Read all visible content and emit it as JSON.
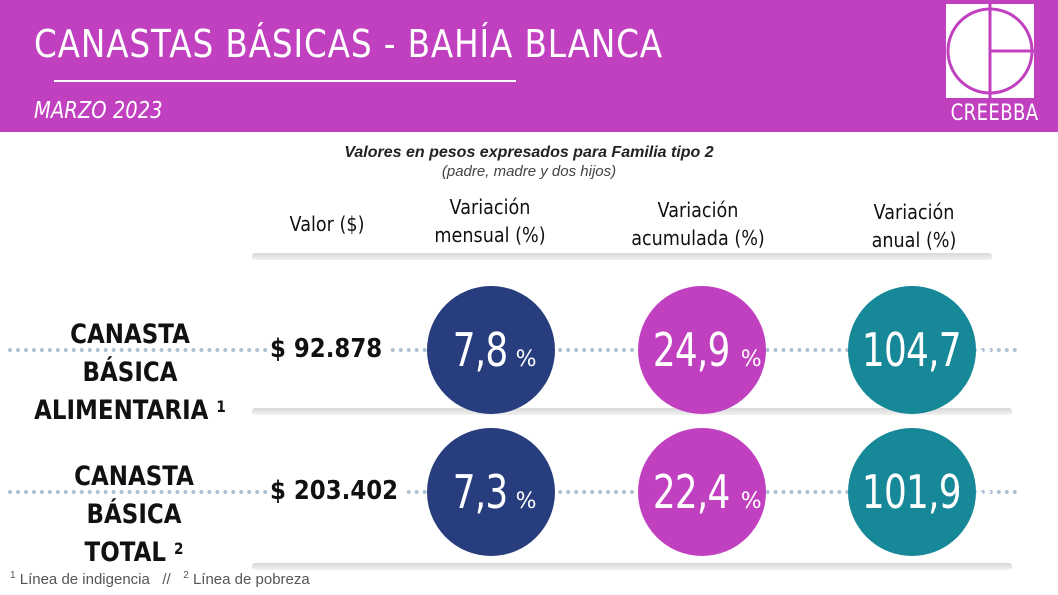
{
  "header": {
    "title": "CANASTAS  BÁSICAS - BAHÍA  BLANCA",
    "subtitle": "MARZO 2023",
    "logo_text": "CREEBBA",
    "bg_color": "#c040c0"
  },
  "caption": {
    "line1": "Valores en pesos expresados para Familia tipo 2",
    "line2": "(padre, madre y dos hijos)"
  },
  "columns": {
    "valor": "Valor ($)",
    "mensual_line1": "Variación",
    "mensual_line2": "mensual (%)",
    "acumulada_line1": "Variación",
    "acumulada_line2": "acumulada (%)",
    "anual_line1": "Variación",
    "anual_line2": "anual (%)"
  },
  "rows": [
    {
      "label_line1": "CANASTA BÁSICA",
      "label_line2": "ALIMENTARIA",
      "note": "1",
      "valor": "$ 92.878",
      "mensual": "7,8",
      "acumulada": "24,9",
      "anual": "104,7"
    },
    {
      "label_line1": "CANASTA BÁSICA",
      "label_line2": "TOTAL",
      "note": "2",
      "valor": "$ 203.402",
      "mensual": "7,3",
      "acumulada": "22,4",
      "anual": "101,9"
    }
  ],
  "percent_sign": "%",
  "footnotes": {
    "note1_num": "1",
    "note1_text": "Línea de indigencia",
    "separator": "//",
    "note2_num": "2",
    "note2_text": "Línea de pobreza"
  },
  "colors": {
    "mensual": "#273d7e",
    "acumulada": "#c040c0",
    "anual": "#178898"
  }
}
